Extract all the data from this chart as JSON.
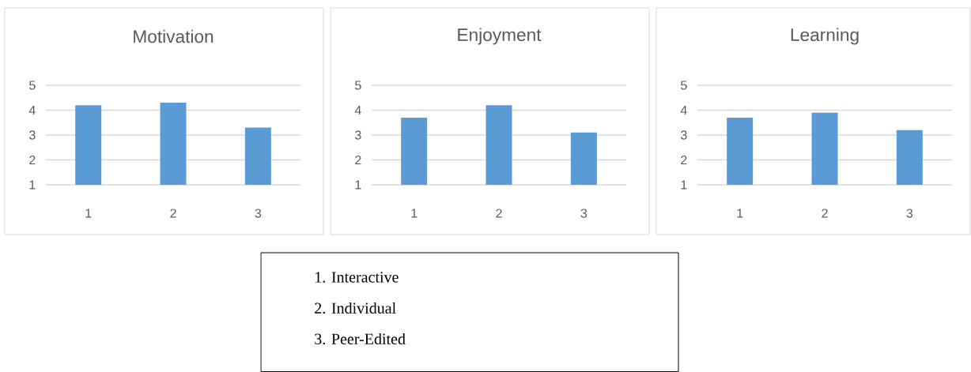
{
  "chart_data": [
    {
      "type": "bar",
      "title": "Motivation",
      "categories": [
        "1",
        "2",
        "3"
      ],
      "values": [
        4.2,
        4.3,
        3.3
      ],
      "color": "#5b9bd5",
      "ylim": [
        1,
        5
      ],
      "yticks": [
        1,
        2,
        3,
        4,
        5
      ],
      "grid": "y"
    },
    {
      "type": "bar",
      "title": "Enjoyment",
      "categories": [
        "1",
        "2",
        "3"
      ],
      "values": [
        3.7,
        4.2,
        3.1
      ],
      "color": "#5b9bd5",
      "ylim": [
        1,
        5
      ],
      "yticks": [
        1,
        2,
        3,
        4,
        5
      ],
      "grid": "y"
    },
    {
      "type": "bar",
      "title": "Learning",
      "categories": [
        "1",
        "2",
        "3"
      ],
      "values": [
        3.7,
        3.9,
        3.2
      ],
      "color": "#5b9bd5",
      "ylim": [
        1,
        5
      ],
      "yticks": [
        1,
        2,
        3,
        4,
        5
      ],
      "grid": "y"
    },
    {
      "type": "other",
      "annotations": [
        "1.  Interactive",
        "2.  Individual",
        "3.  Peer-Edited"
      ]
    }
  ]
}
